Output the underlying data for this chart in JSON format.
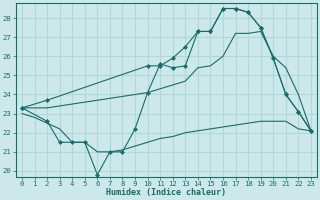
{
  "xlabel": "Humidex (Indice chaleur)",
  "ylabel": "",
  "background_color": "#cce8e8",
  "grid_color": "#b0d8d8",
  "line_color": "#1a6b6b",
  "xlim": [
    -0.5,
    23.5
  ],
  "ylim": [
    19.7,
    28.8
  ],
  "yticks": [
    20,
    21,
    22,
    23,
    24,
    25,
    26,
    27,
    28
  ],
  "xticks": [
    0,
    1,
    2,
    3,
    4,
    5,
    6,
    7,
    8,
    9,
    10,
    11,
    12,
    13,
    14,
    15,
    16,
    17,
    18,
    19,
    20,
    21,
    22,
    23
  ],
  "line1_x": [
    0,
    2,
    3,
    4,
    5,
    6,
    7,
    8,
    9,
    10,
    11,
    12,
    13,
    14,
    15,
    16,
    17,
    18,
    19,
    20,
    21,
    22,
    23
  ],
  "line1_y": [
    23.3,
    22.6,
    21.5,
    21.5,
    21.5,
    19.8,
    21.0,
    21.0,
    22.2,
    24.1,
    25.6,
    25.4,
    25.5,
    27.3,
    27.3,
    28.5,
    28.5,
    28.3,
    27.5,
    25.9,
    24.0,
    23.1,
    22.1
  ],
  "line2_x": [
    0,
    2,
    10,
    11,
    12,
    13,
    14,
    15,
    16,
    17,
    18,
    19,
    20,
    21,
    22,
    23
  ],
  "line2_y": [
    23.3,
    23.7,
    25.5,
    25.5,
    25.9,
    26.5,
    27.3,
    27.3,
    28.5,
    28.5,
    28.3,
    27.5,
    25.9,
    24.0,
    23.1,
    22.1
  ],
  "line3_x": [
    0,
    1,
    2,
    3,
    4,
    5,
    6,
    7,
    8,
    9,
    10,
    11,
    12,
    13,
    14,
    15,
    16,
    17,
    18,
    19,
    20,
    21,
    22,
    23
  ],
  "line3_y": [
    23.3,
    23.3,
    23.3,
    23.4,
    23.5,
    23.6,
    23.7,
    23.8,
    23.9,
    24.0,
    24.1,
    24.3,
    24.5,
    24.7,
    25.4,
    25.5,
    26.0,
    27.2,
    27.2,
    27.3,
    26.0,
    25.4,
    24.0,
    22.1
  ],
  "line4_x": [
    0,
    1,
    2,
    3,
    4,
    5,
    6,
    7,
    8,
    9,
    10,
    11,
    12,
    13,
    14,
    15,
    16,
    17,
    18,
    19,
    20,
    21,
    22,
    23
  ],
  "line4_y": [
    23.0,
    22.8,
    22.5,
    22.2,
    21.5,
    21.5,
    21.0,
    21.0,
    21.1,
    21.3,
    21.5,
    21.7,
    21.8,
    22.0,
    22.1,
    22.2,
    22.3,
    22.4,
    22.5,
    22.6,
    22.6,
    22.6,
    22.2,
    22.1
  ]
}
